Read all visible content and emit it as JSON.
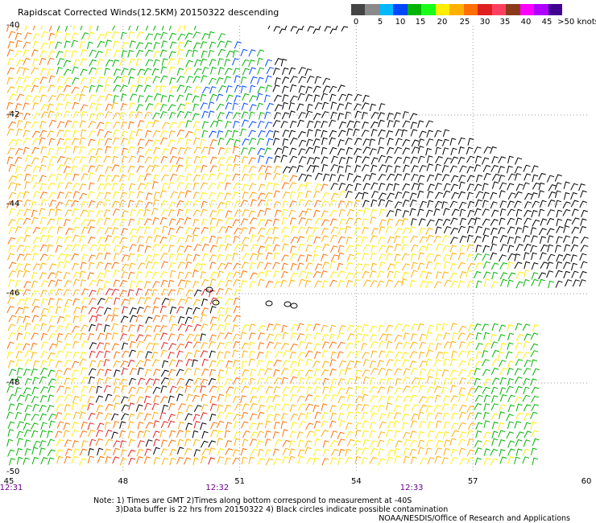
{
  "title": "Rapidscat Corrected Winds(12.5KM) 20150322 descending",
  "legend": {
    "labels": [
      "0",
      "5",
      "10",
      "15",
      "20",
      "25",
      "30",
      "35",
      "40",
      "45",
      ">50 knots"
    ],
    "colors": [
      "#444444",
      "#8a8a8a",
      "#00b8ff",
      "#0048ff",
      "#00b400",
      "#1aff1a",
      "#ffee00",
      "#ffb000",
      "#ff7000",
      "#e02020",
      "#ff4060",
      "#8a3a1a",
      "#ff00ff",
      "#b000ff",
      "#400090"
    ]
  },
  "map": {
    "lat_labels": [
      "-40",
      "-42",
      "-44",
      "-46",
      "-48",
      "-50"
    ],
    "lon_labels": [
      "45",
      "48",
      "51",
      "54",
      "57",
      "60"
    ],
    "lat_range": [
      -50,
      -40
    ],
    "lon_range": [
      45,
      60
    ],
    "grid": true,
    "time_labels": [
      {
        "text": "12:31",
        "lon": 45
      },
      {
        "text": "12:32",
        "lon": 50.3
      },
      {
        "text": "12:33",
        "lon": 55.3
      }
    ]
  },
  "notes": "Note: 1) Times are GMT 2)Times along bottom correspond to measurement at -40S\n         3)Data buffer is 22 hrs from 20150322 4) Black circles indicate possible contamination",
  "credit": "NOAA/NESDIS/Office of Research and Applications"
}
